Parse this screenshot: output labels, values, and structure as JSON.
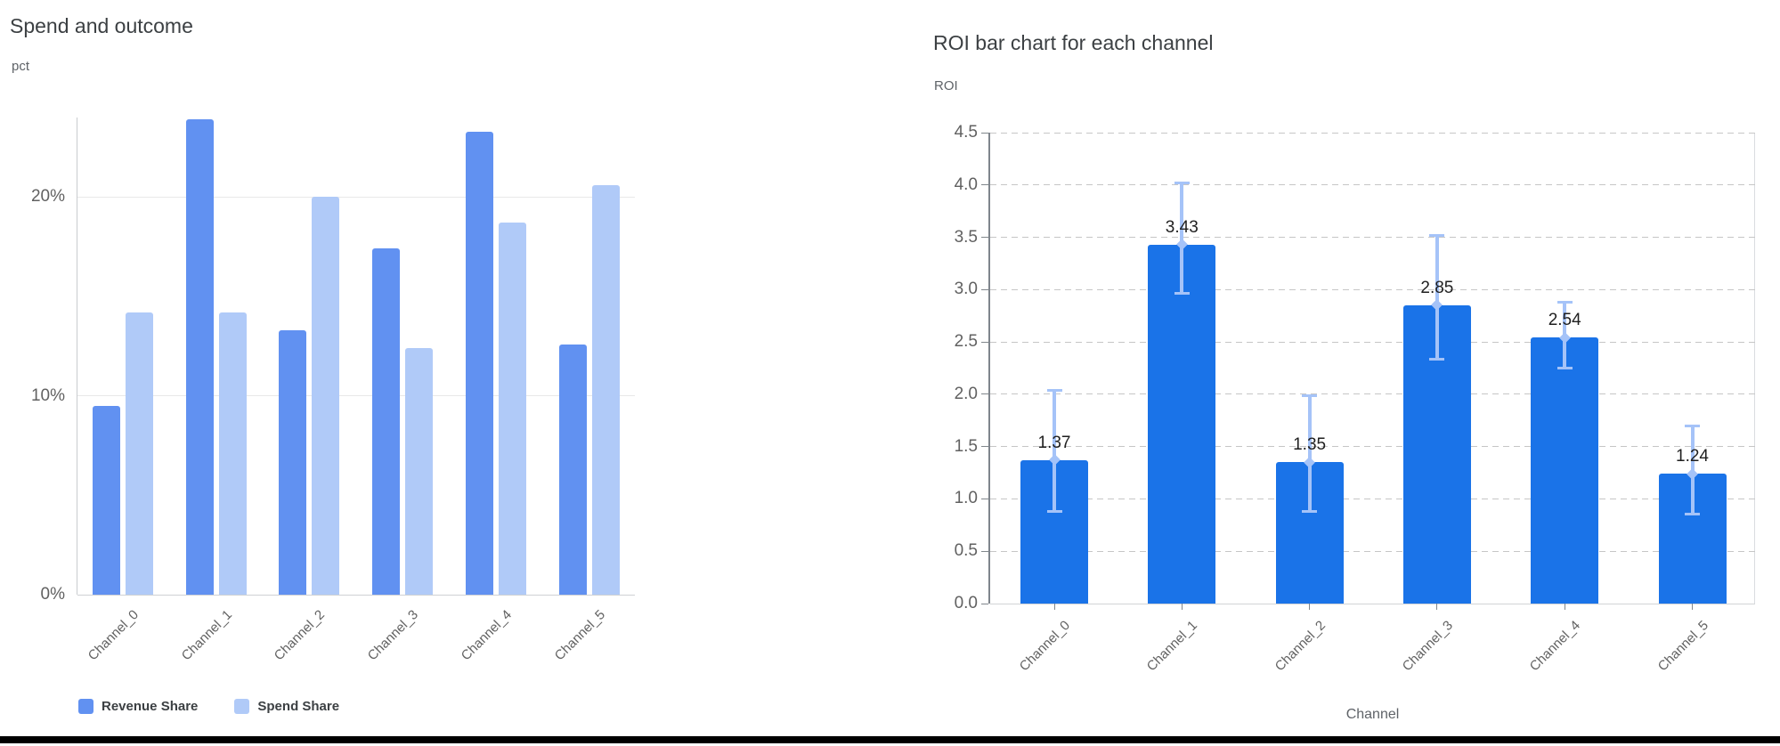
{
  "chart_data": [
    {
      "id": "spend-and-outcome",
      "type": "bar",
      "title": "Spend and outcome",
      "ylabel": "pct",
      "xlabel": "",
      "categories": [
        "Channel_0",
        "Channel_1",
        "Channel_2",
        "Channel_3",
        "Channel_4",
        "Channel_5"
      ],
      "series": [
        {
          "name": "Revenue Share",
          "color": "#6191F1",
          "values": [
            9.5,
            23.9,
            13.3,
            17.4,
            23.3,
            12.6
          ]
        },
        {
          "name": "Spend Share",
          "color": "#B0CAF8",
          "values": [
            14.2,
            14.2,
            20.0,
            12.4,
            18.7,
            20.6
          ]
        }
      ],
      "value_unit": "%",
      "ylim": [
        0,
        24
      ],
      "yticks": [
        {
          "value": 0,
          "label": "0%"
        },
        {
          "value": 10,
          "label": "10%"
        },
        {
          "value": 20,
          "label": "20%"
        }
      ],
      "grid": "solid",
      "legend_position": "bottom-left"
    },
    {
      "id": "roi-by-channel",
      "type": "bar",
      "title": "ROI bar chart for each channel",
      "ylabel": "ROI",
      "xlabel": "Channel",
      "categories": [
        "Channel_0",
        "Channel_1",
        "Channel_2",
        "Channel_3",
        "Channel_4",
        "Channel_5"
      ],
      "values": [
        1.37,
        3.43,
        1.35,
        2.85,
        2.54,
        1.24
      ],
      "value_labels": [
        "1.37",
        "3.43",
        "1.35",
        "2.85",
        "2.54",
        "1.24"
      ],
      "error_low": [
        0.88,
        2.96,
        0.88,
        2.33,
        2.25,
        0.85
      ],
      "error_high": [
        2.04,
        4.02,
        1.99,
        3.52,
        2.88,
        1.7
      ],
      "bar_color": "#1A73E8",
      "error_color": "#A5C3F8",
      "ylim": [
        0,
        4.5
      ],
      "yticks": [
        "0.0",
        "0.5",
        "1.0",
        "1.5",
        "2.0",
        "2.5",
        "3.0",
        "3.5",
        "4.0",
        "4.5"
      ],
      "grid": "dashed",
      "legend_position": "none"
    }
  ]
}
